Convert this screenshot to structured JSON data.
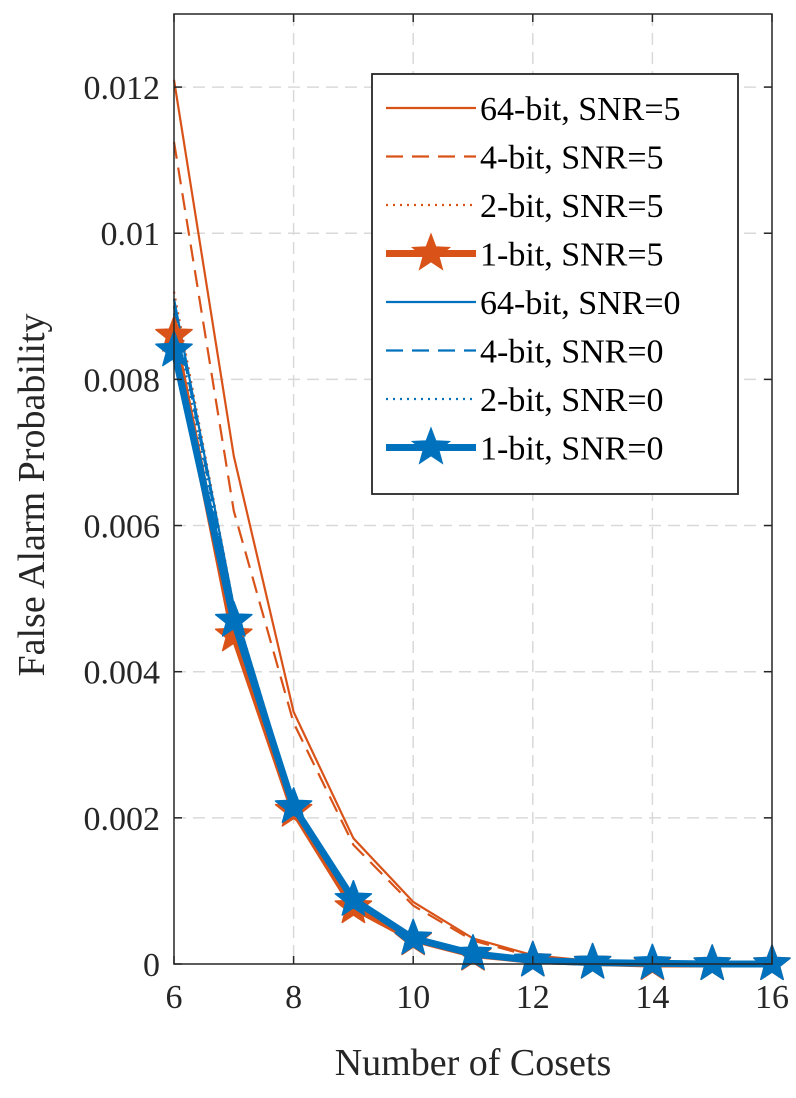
{
  "chart_data": {
    "type": "line",
    "title": "",
    "xlabel": "Number of Cosets",
    "ylabel": "False Alarm Probability",
    "xlim": [
      6,
      16
    ],
    "ylim": [
      0,
      0.013
    ],
    "xticks": [
      6,
      8,
      10,
      12,
      14,
      16
    ],
    "xtick_labels": [
      "6",
      "8",
      "10",
      "12",
      "14",
      "16"
    ],
    "yticks": [
      0,
      0.002,
      0.004,
      0.006,
      0.008,
      0.01,
      0.012
    ],
    "ytick_labels": [
      "0",
      "0.002",
      "0.004",
      "0.006",
      "0.008",
      "0.01",
      "0.012"
    ],
    "grid": true,
    "legend_position": "top-right",
    "x": [
      6,
      7,
      8,
      9,
      10,
      11,
      12,
      13,
      14,
      15,
      16
    ],
    "series": [
      {
        "name": "64-bit, SNR=5",
        "color": "#D95319",
        "style": "solid",
        "marker": "none",
        "weight": "thin",
        "values": [
          0.0121,
          0.00695,
          0.00345,
          0.00172,
          0.00085,
          0.00035,
          0.00012,
          4e-05,
          1e-05,
          0,
          0
        ]
      },
      {
        "name": "4-bit, SNR=5",
        "color": "#D95319",
        "style": "dashed",
        "marker": "none",
        "weight": "thin",
        "values": [
          0.01125,
          0.0062,
          0.0033,
          0.00163,
          0.0008,
          0.00032,
          0.0001,
          3e-05,
          1e-05,
          0,
          0
        ]
      },
      {
        "name": "2-bit, SNR=5",
        "color": "#D95319",
        "style": "dotted",
        "marker": "none",
        "weight": "thin",
        "values": [
          0.0092,
          0.0049,
          0.0022,
          0.00083,
          0.00036,
          0.00013,
          5e-05,
          2e-05,
          0,
          0,
          0
        ]
      },
      {
        "name": "1-bit, SNR=5",
        "color": "#D95319",
        "style": "solid",
        "marker": "star",
        "weight": "thick",
        "values": [
          0.0086,
          0.0045,
          0.0021,
          0.00078,
          0.00034,
          0.00013,
          5e-05,
          2e-05,
          0,
          0,
          0
        ]
      },
      {
        "name": "64-bit, SNR=0",
        "color": "#0072BD",
        "style": "solid",
        "marker": "none",
        "weight": "thin",
        "values": [
          0.0091,
          0.0049,
          0.0022,
          0.00088,
          0.00036,
          0.00014,
          5e-05,
          2e-05,
          0,
          0,
          0
        ]
      },
      {
        "name": "4-bit, SNR=0",
        "color": "#0072BD",
        "style": "dashed",
        "marker": "none",
        "weight": "thin",
        "values": [
          0.009,
          0.00485,
          0.00218,
          0.00087,
          0.00036,
          0.00014,
          5e-05,
          2e-05,
          0,
          0,
          0
        ]
      },
      {
        "name": "2-bit, SNR=0",
        "color": "#0072BD",
        "style": "dotted",
        "marker": "none",
        "weight": "thin",
        "values": [
          0.0089,
          0.0048,
          0.00215,
          0.00092,
          0.00038,
          0.00016,
          6e-05,
          2e-05,
          0,
          0,
          0
        ]
      },
      {
        "name": "1-bit, SNR=0",
        "color": "#0072BD",
        "style": "solid",
        "marker": "star",
        "weight": "thick",
        "values": [
          0.0084,
          0.0047,
          0.00215,
          0.00088,
          0.00035,
          0.00014,
          5e-05,
          2e-05,
          1e-05,
          0,
          0
        ]
      }
    ]
  }
}
